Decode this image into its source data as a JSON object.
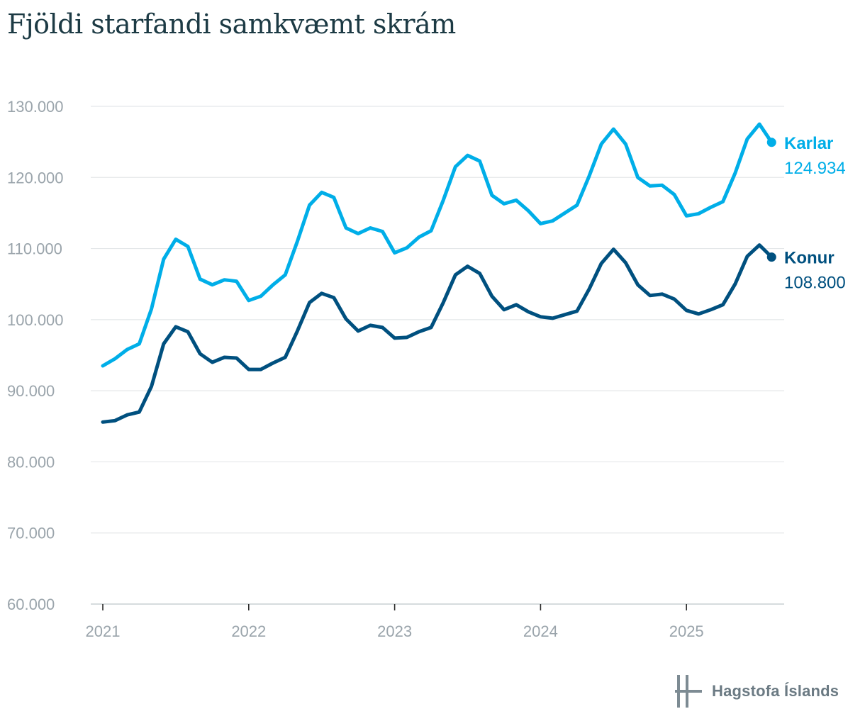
{
  "page": {
    "title": "Fjöldi starfandi samkvæmt skrám"
  },
  "logo": {
    "text": "Hagstofa Íslands"
  },
  "chart_data": {
    "type": "line",
    "title": "Fjöldi starfandi samkvæmt skrám",
    "xlabel": "",
    "ylabel": "",
    "ylim": [
      60000,
      130000
    ],
    "yticks": [
      60000,
      70000,
      80000,
      90000,
      100000,
      110000,
      120000,
      130000
    ],
    "ytick_labels": [
      "60.000",
      "70.000",
      "80.000",
      "90.000",
      "100.000",
      "110.000",
      "120.000",
      "130.000"
    ],
    "xticks": [
      "2021",
      "2022",
      "2023",
      "2024",
      "2025"
    ],
    "x_start": "2021-01",
    "x_frequency": "monthly",
    "grid": true,
    "series": [
      {
        "name": "Karlar",
        "color": "#00aee8",
        "end_label": "124.934",
        "values": [
          93500,
          94500,
          95800,
          96600,
          101500,
          108500,
          111300,
          110300,
          105700,
          104900,
          105600,
          105400,
          102700,
          103300,
          104900,
          106300,
          111000,
          116100,
          117900,
          117200,
          112900,
          112100,
          112900,
          112400,
          109400,
          110100,
          111600,
          112500,
          116800,
          121500,
          123100,
          122300,
          117500,
          116300,
          116800,
          115300,
          113500,
          113900,
          115000,
          116100,
          120200,
          124700,
          126800,
          124700,
          120000,
          118800,
          118900,
          117600,
          114600,
          114900,
          115800,
          116600,
          120600,
          125400,
          127500,
          124934
        ]
      },
      {
        "name": "Konur",
        "color": "#00507f",
        "end_label": "108.800",
        "values": [
          85600,
          85800,
          86600,
          87000,
          90600,
          96600,
          99000,
          98300,
          95200,
          94000,
          94700,
          94600,
          93000,
          93000,
          93900,
          94700,
          98400,
          102400,
          103700,
          103100,
          100100,
          98400,
          99200,
          98900,
          97400,
          97500,
          98300,
          98900,
          102400,
          106300,
          107500,
          106500,
          103300,
          101400,
          102100,
          101100,
          100400,
          100200,
          100700,
          101200,
          104300,
          107900,
          109900,
          108000,
          104900,
          103400,
          103600,
          102900,
          101300,
          100800,
          101400,
          102100,
          105000,
          108900,
          110500,
          108800
        ]
      }
    ]
  }
}
